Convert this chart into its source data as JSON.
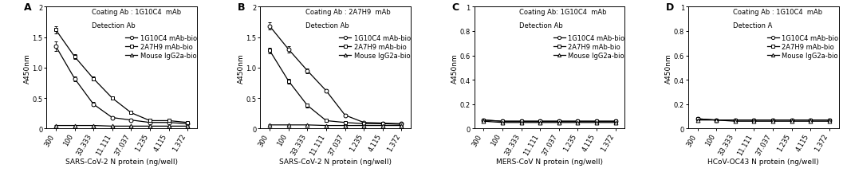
{
  "panels": [
    {
      "label": "A",
      "coating": "Coating Ab : 1G10C4  mAb",
      "detection": "Detection Ab",
      "xlabel": "SARS-CoV-2 N protein (ng/well)",
      "ylim": [
        0,
        2
      ],
      "yticks": [
        0,
        0.5,
        1.0,
        1.5,
        2.0
      ],
      "ytick_labels": [
        "0",
        "0.5",
        "1.0",
        "1.5",
        "2"
      ],
      "series": [
        {
          "name": "1G10C4 mAb-bio",
          "marker": "o",
          "values": [
            1.35,
            0.82,
            0.4,
            0.18,
            0.14,
            0.1,
            0.1,
            0.08
          ],
          "errors": [
            0.08,
            0.04,
            0.03,
            0.02,
            0.02,
            0.01,
            0.01,
            0.01
          ]
        },
        {
          "name": "2A7H9 mAb-bio",
          "marker": "s",
          "values": [
            1.62,
            1.18,
            0.82,
            0.5,
            0.26,
            0.13,
            0.13,
            0.1
          ],
          "errors": [
            0.06,
            0.04,
            0.03,
            0.03,
            0.02,
            0.01,
            0.01,
            0.01
          ]
        },
        {
          "name": "Mouse IgG2a-bio",
          "marker": "^",
          "values": [
            0.05,
            0.05,
            0.05,
            0.04,
            0.04,
            0.04,
            0.04,
            0.04
          ],
          "errors": [
            0.005,
            0.005,
            0.005,
            0.005,
            0.005,
            0.005,
            0.005,
            0.005
          ]
        }
      ]
    },
    {
      "label": "B",
      "coating": "Coating Ab : 2A7H9  mAb",
      "detection": "Detection Ab",
      "xlabel": "SARS-CoV-2 N protein (ng/well)",
      "ylim": [
        0,
        2
      ],
      "yticks": [
        0,
        0.5,
        1.0,
        1.5,
        2.0
      ],
      "ytick_labels": [
        "0",
        "0.5",
        "1.0",
        "1.5",
        "2"
      ],
      "series": [
        {
          "name": "1G10C4 mAb-bio",
          "marker": "o",
          "values": [
            1.68,
            1.3,
            0.95,
            0.62,
            0.22,
            0.1,
            0.09,
            0.08
          ],
          "errors": [
            0.06,
            0.05,
            0.04,
            0.03,
            0.02,
            0.01,
            0.01,
            0.01
          ]
        },
        {
          "name": "2A7H9 mAb-bio",
          "marker": "s",
          "values": [
            1.28,
            0.78,
            0.38,
            0.13,
            0.1,
            0.08,
            0.08,
            0.07
          ],
          "errors": [
            0.05,
            0.04,
            0.03,
            0.02,
            0.01,
            0.01,
            0.01,
            0.01
          ]
        },
        {
          "name": "Mouse IgG2a-bio",
          "marker": "^",
          "values": [
            0.06,
            0.06,
            0.06,
            0.05,
            0.05,
            0.05,
            0.05,
            0.05
          ],
          "errors": [
            0.005,
            0.005,
            0.005,
            0.005,
            0.005,
            0.005,
            0.005,
            0.005
          ]
        }
      ]
    },
    {
      "label": "C",
      "coating": "Coating Ab: 1G10C4  mAb",
      "detection": "Detection Ab",
      "xlabel": "MERS-CoV N protein (ng/well)",
      "ylim": [
        0,
        1
      ],
      "yticks": [
        0,
        0.2,
        0.4,
        0.6,
        0.8,
        1.0
      ],
      "ytick_labels": [
        "0",
        "0.2",
        "0.4",
        "0.6",
        "0.8",
        "1"
      ],
      "series": [
        {
          "name": "1G10C4 mAb-bio",
          "marker": "o",
          "values": [
            0.07,
            0.06,
            0.06,
            0.06,
            0.06,
            0.06,
            0.06,
            0.06
          ],
          "errors": [
            0.005,
            0.005,
            0.005,
            0.005,
            0.005,
            0.005,
            0.005,
            0.005
          ]
        },
        {
          "name": "2A7H9 mAb-bio",
          "marker": "s",
          "values": [
            0.07,
            0.06,
            0.06,
            0.06,
            0.06,
            0.06,
            0.06,
            0.06
          ],
          "errors": [
            0.005,
            0.005,
            0.005,
            0.005,
            0.005,
            0.005,
            0.005,
            0.005
          ]
        },
        {
          "name": "Mouse IgG2a-bio",
          "marker": "^",
          "values": [
            0.06,
            0.05,
            0.05,
            0.05,
            0.05,
            0.05,
            0.05,
            0.05
          ],
          "errors": [
            0.005,
            0.005,
            0.005,
            0.005,
            0.005,
            0.005,
            0.005,
            0.005
          ]
        }
      ]
    },
    {
      "label": "D",
      "coating": "Coating Ab : 1G10C4  mAb",
      "detection": "Detection A",
      "xlabel": "HCoV-OC43 N protein (ng/well)",
      "ylim": [
        0,
        1
      ],
      "yticks": [
        0,
        0.2,
        0.4,
        0.6,
        0.8,
        1.0
      ],
      "ytick_labels": [
        "0",
        "0.2",
        "0.4",
        "0.6",
        "0.8",
        "1"
      ],
      "series": [
        {
          "name": "1G10C4 mAb-bio",
          "marker": "o",
          "values": [
            0.08,
            0.07,
            0.07,
            0.07,
            0.07,
            0.07,
            0.07,
            0.07
          ],
          "errors": [
            0.005,
            0.005,
            0.005,
            0.005,
            0.005,
            0.005,
            0.005,
            0.005
          ]
        },
        {
          "name": "2A7H9 mAb-bio",
          "marker": "s",
          "values": [
            0.08,
            0.07,
            0.07,
            0.07,
            0.07,
            0.07,
            0.07,
            0.07
          ],
          "errors": [
            0.005,
            0.005,
            0.005,
            0.005,
            0.005,
            0.005,
            0.005,
            0.005
          ]
        },
        {
          "name": "Mouse IgG2a-bio",
          "marker": "^",
          "values": [
            0.07,
            0.07,
            0.06,
            0.06,
            0.06,
            0.06,
            0.06,
            0.06
          ],
          "errors": [
            0.005,
            0.005,
            0.005,
            0.005,
            0.005,
            0.005,
            0.005,
            0.005
          ]
        }
      ]
    }
  ],
  "xticklabels": [
    "300",
    "100",
    "33.333",
    "11.111",
    "37.037",
    "1.235",
    "4.115",
    "1.372"
  ],
  "line_color": "#000000",
  "marker_size": 3.5,
  "linewidth": 0.9,
  "tick_fontsize": 6.0,
  "axis_label_fontsize": 6.5,
  "annot_fontsize": 6.0,
  "panel_label_fontsize": 9
}
